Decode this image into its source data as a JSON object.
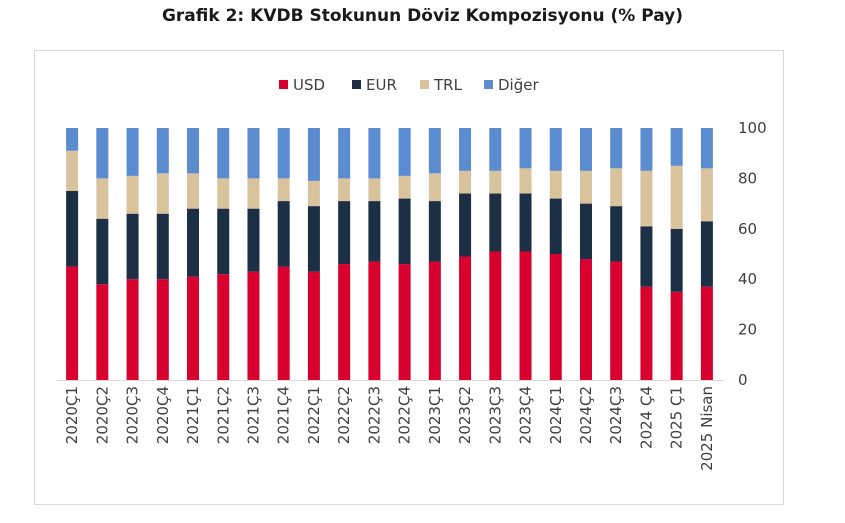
{
  "title": "Grafik 2: KVDB Stokunun Döviz Kompozisyonu (% Pay)",
  "chart_data": {
    "type": "bar",
    "stacked": true,
    "title": "Grafik 2: KVDB Stokunun Döviz Kompozisyonu (% Pay)",
    "categories": [
      "2020Ç1",
      "2020Ç2",
      "2020Ç3",
      "2020Ç4",
      "2021Ç1",
      "2021Ç2",
      "2021Ç3",
      "2021Ç4",
      "2022Ç1",
      "2022Ç2",
      "2022Ç3",
      "2022Ç4",
      "2023Ç1",
      "2023Ç2",
      "2023Ç3",
      "2023Ç4",
      "2024Ç1",
      "2024Ç2",
      "2024Ç3",
      "2024 Ç4",
      "2025 Ç1",
      "2025 Nisan"
    ],
    "series": [
      {
        "name": "USD",
        "color": "#d7002e",
        "values": [
          45,
          38,
          40,
          40,
          41,
          42,
          43,
          45,
          43,
          46,
          47,
          46,
          47,
          49,
          51,
          51,
          50,
          48,
          47,
          37,
          35,
          37
        ]
      },
      {
        "name": "EUR",
        "color": "#1c2f45",
        "values": [
          30,
          26,
          26,
          26,
          27,
          26,
          25,
          26,
          26,
          25,
          24,
          26,
          24,
          25,
          23,
          23,
          22,
          22,
          22,
          24,
          25,
          26
        ]
      },
      {
        "name": "TRL",
        "color": "#d9c39d",
        "values": [
          16,
          16,
          15,
          16,
          14,
          12,
          12,
          9,
          10,
          9,
          9,
          9,
          11,
          9,
          9,
          10,
          11,
          13,
          15,
          22,
          25,
          21
        ]
      },
      {
        "name": "Diğer",
        "color": "#5b8ccf",
        "values": [
          9,
          20,
          19,
          18,
          18,
          20,
          20,
          20,
          21,
          20,
          20,
          19,
          18,
          17,
          17,
          16,
          17,
          17,
          16,
          17,
          15,
          16
        ]
      }
    ],
    "ylim": [
      0,
      100
    ],
    "yticks": [
      0,
      20,
      40,
      60,
      80,
      100
    ],
    "ylabel": "",
    "xlabel": "",
    "legend_position": "top",
    "grid": false
  }
}
